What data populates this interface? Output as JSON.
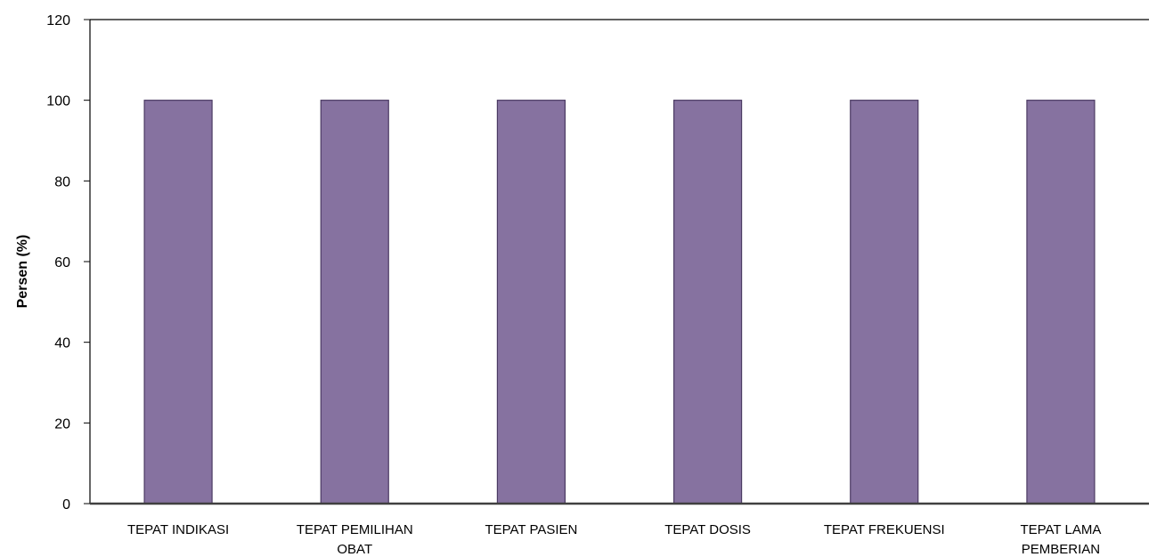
{
  "chart_data": {
    "type": "bar",
    "categories": [
      [
        "TEPAT INDIKASI"
      ],
      [
        "TEPAT PEMILIHAN",
        "OBAT"
      ],
      [
        "TEPAT PASIEN"
      ],
      [
        "TEPAT DOSIS"
      ],
      [
        "TEPAT FREKUENSI"
      ],
      [
        "TEPAT LAMA",
        "PEMBERIAN"
      ]
    ],
    "values": [
      100,
      100,
      100,
      100,
      100,
      100
    ],
    "title": "",
    "xlabel": "",
    "ylabel": "Persen (%)",
    "ylim": [
      0,
      120
    ],
    "yticks": [
      0,
      20,
      40,
      60,
      80,
      100,
      120
    ],
    "grid": false,
    "legend": "none",
    "colors": {
      "bar_fill": "#8672a0",
      "bar_stroke": "#4b3a63",
      "axis": "#000000"
    }
  }
}
